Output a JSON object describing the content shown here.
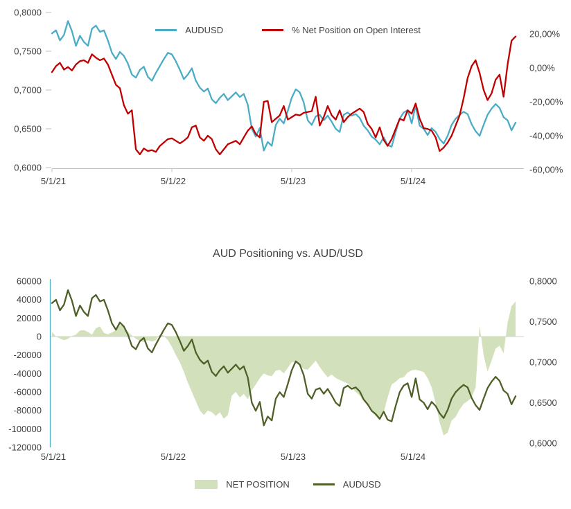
{
  "chart_data": [
    {
      "type": "line",
      "title": "",
      "x_labels": [
        "5/1/21",
        "5/1/22",
        "5/1/23",
        "5/1/24"
      ],
      "left_axis": {
        "min": 0.6,
        "max": 0.8,
        "tick_labels": [
          "0,8000",
          "0,7500",
          "0,7000",
          "0,6500",
          "0,6000"
        ]
      },
      "right_axis": {
        "min": -60,
        "max": 20,
        "tick_labels": [
          "20,00%",
          "0,00%",
          "-20,00%",
          "-40,00%",
          "-60,00%"
        ]
      },
      "legend_position": "top",
      "grid": "x-axis-line-only",
      "series": [
        {
          "name": "AUDUSD",
          "type": "line",
          "axis": "left",
          "color": "#4BACC6",
          "values_ref": "audusd"
        },
        {
          "name": "% Net Position on Open Interest",
          "type": "line",
          "axis": "right",
          "color": "#C00000",
          "values_ref": "pct_net_oi"
        }
      ]
    },
    {
      "type": "combo",
      "title": "AUD Positioning vs. AUD/USD",
      "x_labels": [
        "5/1/21",
        "5/1/22",
        "5/1/23",
        "5/1/24"
      ],
      "left_axis": {
        "min": -120000,
        "max": 60000,
        "tick_labels": [
          "60000",
          "40000",
          "20000",
          "0",
          "-20000",
          "-40000",
          "-60000",
          "-80000",
          "-100000",
          "-120000"
        ]
      },
      "right_axis": {
        "min": 0.6,
        "max": 0.8,
        "tick_labels": [
          "0,8000",
          "0,7500",
          "0,7000",
          "0,6500",
          "0,6000"
        ]
      },
      "legend_position": "bottom",
      "grid": "zero-line-only",
      "axis_line_color": "#4BACC6",
      "series": [
        {
          "name": "NET POSITION",
          "type": "area",
          "axis": "left",
          "color": "#D3E0BC",
          "values_ref": "net_position"
        },
        {
          "name": "AUDUSD",
          "type": "line",
          "axis": "right",
          "color": "#4E5F28",
          "values_ref": "audusd"
        }
      ]
    }
  ],
  "series_values": {
    "audusd": [
      0.773,
      0.777,
      0.764,
      0.771,
      0.789,
      0.776,
      0.757,
      0.77,
      0.762,
      0.757,
      0.779,
      0.783,
      0.775,
      0.777,
      0.764,
      0.748,
      0.74,
      0.749,
      0.744,
      0.734,
      0.72,
      0.716,
      0.726,
      0.73,
      0.717,
      0.712,
      0.722,
      0.731,
      0.74,
      0.748,
      0.746,
      0.737,
      0.726,
      0.714,
      0.72,
      0.728,
      0.712,
      0.703,
      0.698,
      0.702,
      0.688,
      0.683,
      0.69,
      0.695,
      0.687,
      0.692,
      0.697,
      0.691,
      0.695,
      0.681,
      0.65,
      0.64,
      0.651,
      0.622,
      0.633,
      0.628,
      0.655,
      0.663,
      0.657,
      0.673,
      0.69,
      0.701,
      0.697,
      0.684,
      0.661,
      0.655,
      0.666,
      0.668,
      0.661,
      0.667,
      0.659,
      0.65,
      0.646,
      0.668,
      0.671,
      0.667,
      0.669,
      0.664,
      0.654,
      0.648,
      0.64,
      0.636,
      0.63,
      0.639,
      0.629,
      0.627,
      0.646,
      0.663,
      0.671,
      0.674,
      0.657,
      0.68,
      0.654,
      0.65,
      0.642,
      0.651,
      0.646,
      0.637,
      0.631,
      0.641,
      0.655,
      0.663,
      0.668,
      0.672,
      0.669,
      0.656,
      0.647,
      0.641,
      0.655,
      0.668,
      0.676,
      0.682,
      0.677,
      0.665,
      0.661,
      0.648,
      0.658
    ],
    "pct_net_oi": [
      -2.5,
      1.0,
      3.0,
      -1.0,
      0.5,
      -1.5,
      2.0,
      4.0,
      4.5,
      3.0,
      8.0,
      6.0,
      4.5,
      5.5,
      2.0,
      -4.0,
      -10.0,
      -12.0,
      -22.0,
      -27.0,
      -25.0,
      -48.0,
      -51.0,
      -47.5,
      -49.0,
      -48.5,
      -49.5,
      -46.0,
      -44.0,
      -42.0,
      -41.5,
      -43.0,
      -44.5,
      -43.0,
      -41.0,
      -35.0,
      -34.0,
      -41.0,
      -43.0,
      -40.0,
      -42.0,
      -48.0,
      -51.0,
      -48.0,
      -45.0,
      -44.0,
      -43.0,
      -45.0,
      -41.0,
      -37.0,
      -34.5,
      -39.0,
      -41.0,
      -20.0,
      -19.5,
      -32.0,
      -30.0,
      -28.0,
      -22.5,
      -30.5,
      -29.0,
      -27.5,
      -28.0,
      -26.5,
      -26.0,
      -25.5,
      -17.0,
      -34.0,
      -29.0,
      -22.5,
      -28.0,
      -30.5,
      -25.0,
      -32.0,
      -29.0,
      -27.0,
      -25.5,
      -24.0,
      -26.0,
      -33.0,
      -36.0,
      -41.0,
      -35.0,
      -42.5,
      -46.0,
      -42.0,
      -36.0,
      -30.0,
      -31.0,
      -25.0,
      -27.0,
      -21.0,
      -30.0,
      -35.5,
      -36.0,
      -37.0,
      -41.0,
      -49.0,
      -47.0,
      -44.0,
      -40.0,
      -34.0,
      -28.0,
      -18.0,
      -6.0,
      1.0,
      4.5,
      -3.0,
      -13.0,
      -19.0,
      -15.0,
      -7.0,
      -4.0,
      -17.0,
      2.0,
      16.0,
      18.5
    ],
    "net_position": [
      5000,
      0,
      -2000,
      -4000,
      -2500,
      500,
      2000,
      6500,
      7000,
      5000,
      2000,
      9000,
      11000,
      4000,
      2500,
      4500,
      7000,
      12500,
      11000,
      5000,
      1000,
      -2500,
      -4500,
      -6000,
      -4000,
      -5500,
      -4000,
      2500,
      1000,
      -4000,
      -11000,
      -20000,
      -28000,
      -38000,
      -50000,
      -60000,
      -70000,
      -80000,
      -85000,
      -80000,
      -82000,
      -86000,
      -82000,
      -89000,
      -85000,
      -64000,
      -60000,
      -66000,
      -62000,
      -68000,
      -58000,
      -52000,
      -45000,
      -40000,
      -42000,
      -43000,
      -37000,
      -36000,
      -40000,
      -34000,
      -28000,
      -27000,
      -31000,
      -35000,
      -36000,
      -31000,
      -26000,
      -33000,
      -39000,
      -44000,
      -41000,
      -45000,
      -47000,
      -49000,
      -51000,
      -55000,
      -60000,
      -64000,
      -70000,
      -75000,
      -81000,
      -86000,
      -88000,
      -82000,
      -66000,
      -52000,
      -49000,
      -45000,
      -44000,
      -39000,
      -36500,
      -36000,
      -37000,
      -38500,
      -45000,
      -55000,
      -72000,
      -93000,
      -107000,
      -104000,
      -91000,
      -87000,
      -79000,
      -73000,
      -70000,
      -66000,
      -55000,
      12000,
      -20000,
      -38000,
      -26000,
      -13000,
      -10000,
      -18000,
      15000,
      33000,
      38000
    ]
  }
}
